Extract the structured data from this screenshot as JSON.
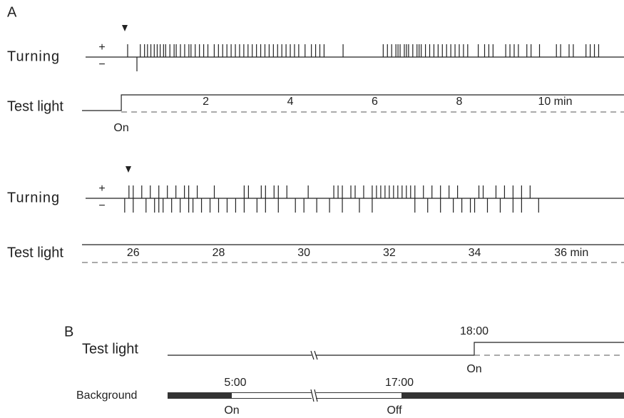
{
  "panel_a": {
    "label": "A",
    "traces": [
      {
        "turning_label": "Turning",
        "plus": "+",
        "minus": "−",
        "light_label": "Test light",
        "on_label": "On",
        "xlim": [
          -0.93,
          11.9
        ],
        "ticks": [
          2,
          4,
          6,
          8,
          {
            "value": 10,
            "label": "10 min"
          }
        ],
        "turns_plus": [
          0.15,
          0.45,
          0.55,
          0.62,
          0.7,
          0.78,
          0.85,
          0.92,
          1.0,
          1.05,
          1.15,
          1.25,
          1.3,
          1.4,
          1.5,
          1.6,
          1.65,
          1.75,
          1.85,
          1.95,
          2.05,
          2.2,
          2.3,
          2.4,
          2.5,
          2.6,
          2.7,
          2.8,
          2.9,
          3.0,
          3.1,
          3.2,
          3.3,
          3.4,
          3.5,
          3.6,
          3.7,
          3.8,
          3.9,
          4.0,
          4.1,
          4.2,
          4.35,
          4.5,
          4.6,
          4.7,
          4.8,
          5.25,
          6.2,
          6.3,
          6.4,
          6.5,
          6.55,
          6.6,
          6.7,
          6.75,
          6.8,
          6.9,
          7.0,
          7.05,
          7.1,
          7.2,
          7.3,
          7.4,
          7.5,
          7.6,
          7.7,
          7.8,
          7.9,
          8.0,
          8.1,
          8.2,
          8.45,
          8.6,
          8.7,
          8.8,
          9.1,
          9.2,
          9.3,
          9.4,
          9.6,
          9.7,
          9.9,
          10.3,
          10.4,
          10.6,
          10.7,
          11.0,
          11.1,
          11.2,
          11.3
        ],
        "turns_minus": [
          0.37
        ]
      },
      {
        "turning_label": "Turning",
        "plus": "+",
        "minus": "−",
        "light_label": "Test light",
        "xlim": [
          24.8,
          37.5
        ],
        "ticks": [
          26,
          28,
          30,
          32,
          34,
          {
            "value": 36,
            "label": "36 min"
          }
        ],
        "turns_plus": [
          25.9,
          26.0,
          26.2,
          26.4,
          26.6,
          26.8,
          27.0,
          27.2,
          27.3,
          27.5,
          27.9,
          28.6,
          28.7,
          29.0,
          29.1,
          29.3,
          29.4,
          29.6,
          30.1,
          30.7,
          30.8,
          30.9,
          31.1,
          31.2,
          31.4,
          31.6,
          31.7,
          31.8,
          31.9,
          32.0,
          32.1,
          32.2,
          32.3,
          32.4,
          32.5,
          32.6,
          32.8,
          33.0,
          33.2,
          33.4,
          33.6,
          34.1,
          34.2,
          34.5,
          34.7,
          34.9,
          35.1,
          35.3
        ],
        "turns_minus": [
          25.8,
          26.0,
          26.3,
          26.5,
          26.6,
          26.7,
          26.9,
          27.1,
          27.3,
          27.4,
          27.6,
          27.8,
          28.0,
          28.2,
          28.4,
          28.6,
          28.9,
          29.1,
          29.4,
          29.8,
          30.0,
          30.3,
          30.6,
          30.9,
          31.3,
          31.6,
          32.6,
          32.9,
          33.2,
          33.5,
          33.7,
          33.9,
          34.0,
          34.3,
          34.6,
          34.9,
          35.1,
          35.5
        ]
      }
    ]
  },
  "panel_b": {
    "label": "B",
    "test_light_label": "Test light",
    "light_time": "18:00",
    "light_on": "On",
    "background_label": "Background",
    "bg_on_time": "5:00",
    "bg_on": "On",
    "bg_off_time": "17:00",
    "bg_off": "Off"
  }
}
